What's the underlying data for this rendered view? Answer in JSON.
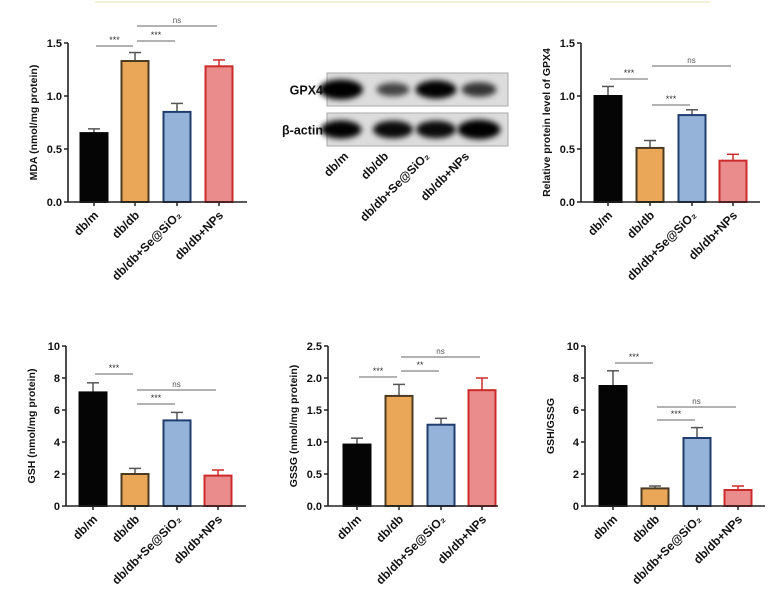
{
  "groups": [
    "db/m",
    "db/db",
    "db/db+Se@SiO₂",
    "db/db+NPs"
  ],
  "colors": {
    "fills": [
      "#050505",
      "#e9a757",
      "#95b2d8",
      "#e98c8b"
    ],
    "strokes": [
      "#050505",
      "#4a3b22",
      "#1f3e6e",
      "#cc2b2b"
    ],
    "error_bar": "#555555"
  },
  "western_blot": {
    "rows": [
      {
        "label": "GPX4",
        "band_intensity": [
          1.0,
          0.45,
          0.85,
          0.55
        ]
      },
      {
        "label": "β-actin",
        "band_intensity": [
          0.85,
          0.8,
          0.8,
          0.95
        ]
      }
    ]
  },
  "chart_data": [
    {
      "type": "bar",
      "ylabel": "MDA (nmol/mg protein)",
      "ylim": [
        0,
        1.5
      ],
      "yticks": [
        "0.0",
        "0.5",
        "1.0",
        "1.5"
      ],
      "ytick_values": [
        0,
        0.5,
        1.0,
        1.5
      ],
      "categories": [
        "db/m",
        "db/db",
        "db/db+Se@SiO₂",
        "db/db+NPs"
      ],
      "values": [
        0.65,
        1.33,
        0.85,
        1.28
      ],
      "errors": [
        0.04,
        0.08,
        0.08,
        0.06
      ],
      "significance": [
        {
          "from": 0,
          "to": 1,
          "label": "***"
        },
        {
          "from": 1,
          "to": 2,
          "label": "***"
        },
        {
          "from": 1,
          "to": 3,
          "label": "ns"
        }
      ]
    },
    {
      "type": "bar",
      "ylabel": "Relative protein level of  GPX4",
      "ylim": [
        0,
        1.5
      ],
      "yticks": [
        "0.0",
        "0.5",
        "1.0",
        "1.5"
      ],
      "ytick_values": [
        0,
        0.5,
        1.0,
        1.5
      ],
      "categories": [
        "db/m",
        "db/db",
        "db/db+Se@SiO₂",
        "db/db+NPs"
      ],
      "values": [
        1.0,
        0.51,
        0.82,
        0.39
      ],
      "errors": [
        0.09,
        0.07,
        0.05,
        0.06
      ],
      "significance": [
        {
          "from": 0,
          "to": 1,
          "label": "***"
        },
        {
          "from": 1,
          "to": 2,
          "label": "***"
        },
        {
          "from": 1,
          "to": 3,
          "label": "ns"
        }
      ]
    },
    {
      "type": "bar",
      "ylabel": "GSH (nmol/mg protein)",
      "ylim": [
        0,
        10
      ],
      "yticks": [
        "0",
        "2",
        "4",
        "6",
        "8",
        "10"
      ],
      "ytick_values": [
        0,
        2,
        4,
        6,
        8,
        10
      ],
      "categories": [
        "db/m",
        "db/db",
        "db/db+Se@SiO₂",
        "db/db+NPs"
      ],
      "values": [
        7.1,
        2.0,
        5.35,
        1.9
      ],
      "errors": [
        0.6,
        0.35,
        0.5,
        0.35
      ],
      "significance": [
        {
          "from": 0,
          "to": 1,
          "label": "***"
        },
        {
          "from": 1,
          "to": 2,
          "label": "***"
        },
        {
          "from": 1,
          "to": 3,
          "label": "ns"
        }
      ]
    },
    {
      "type": "bar",
      "ylabel": "GSSG (nmol/mg protein)",
      "ylim": [
        0,
        2.5
      ],
      "yticks": [
        "0.0",
        "0.5",
        "1.0",
        "1.5",
        "2.0",
        "2.5"
      ],
      "ytick_values": [
        0,
        0.5,
        1.0,
        1.5,
        2.0,
        2.5
      ],
      "categories": [
        "db/m",
        "db/db",
        "db/db+Se@SiO₂",
        "db/db+NPs"
      ],
      "values": [
        0.96,
        1.72,
        1.27,
        1.81
      ],
      "errors": [
        0.1,
        0.18,
        0.1,
        0.19
      ],
      "significance": [
        {
          "from": 0,
          "to": 1,
          "label": "***"
        },
        {
          "from": 1,
          "to": 2,
          "label": "**"
        },
        {
          "from": 1,
          "to": 3,
          "label": "ns"
        }
      ]
    },
    {
      "type": "bar",
      "ylabel": "GSH/GSSG",
      "ylim": [
        0,
        10
      ],
      "yticks": [
        "0",
        "2",
        "4",
        "6",
        "8",
        "10"
      ],
      "ytick_values": [
        0,
        2,
        4,
        6,
        8,
        10
      ],
      "categories": [
        "db/m",
        "db/db",
        "db/db+Se@SiO₂",
        "db/db+NPs"
      ],
      "values": [
        7.5,
        1.1,
        4.25,
        1.0
      ],
      "errors": [
        0.95,
        0.15,
        0.65,
        0.25
      ],
      "significance": [
        {
          "from": 0,
          "to": 1,
          "label": "***"
        },
        {
          "from": 1,
          "to": 2,
          "label": "***"
        },
        {
          "from": 1,
          "to": 3,
          "label": "ns"
        }
      ]
    }
  ]
}
